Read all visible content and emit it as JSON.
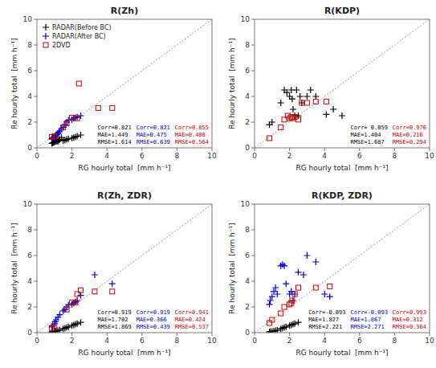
{
  "chart_data": [
    {
      "type": "scatter",
      "title": "R(Zh)",
      "xlabel": "RG hourly total  [mm h⁻¹]",
      "ylabel": "Re hourly total  [mm h⁻¹]",
      "xlim": [
        0,
        10
      ],
      "ylim": [
        0,
        10
      ],
      "xticks": [
        0,
        2,
        4,
        6,
        8,
        10
      ],
      "yticks": [
        0,
        2,
        4,
        6,
        8,
        10
      ],
      "grid": false,
      "legend": "upper left",
      "series": [
        {
          "name": "RADAR(Before BC)",
          "color": "#000000",
          "marker": "plus",
          "x": [
            0.85,
            0.9,
            0.95,
            1.0,
            1.05,
            1.1,
            1.15,
            1.2,
            1.25,
            1.3,
            1.4,
            1.5,
            1.6,
            1.7,
            1.8,
            2.0,
            2.1,
            2.2,
            2.3,
            2.5
          ],
          "values": [
            0.35,
            0.38,
            0.42,
            0.45,
            0.5,
            0.52,
            0.55,
            0.5,
            0.6,
            0.65,
            0.8,
            0.55,
            0.6,
            0.65,
            0.7,
            0.75,
            0.8,
            0.85,
            0.9,
            1.0
          ]
        },
        {
          "name": "RADAR(After BC)",
          "color": "#0000cc",
          "marker": "plus",
          "x": [
            0.85,
            0.9,
            0.95,
            1.0,
            1.05,
            1.1,
            1.15,
            1.2,
            1.25,
            1.3,
            1.4,
            1.5,
            1.6,
            1.7,
            1.8,
            2.0,
            2.1,
            2.2,
            2.3,
            2.5
          ],
          "values": [
            0.7,
            0.75,
            0.82,
            0.88,
            0.95,
            1.0,
            1.05,
            1.1,
            1.2,
            1.3,
            1.5,
            1.6,
            1.8,
            2.0,
            2.15,
            2.2,
            2.3,
            2.35,
            2.4,
            2.5
          ]
        },
        {
          "name": "2DVD",
          "color": "#cc0000",
          "marker": "square-open",
          "x": [
            0.85,
            1.0,
            1.5,
            1.7,
            2.0,
            2.3,
            2.4,
            3.5,
            4.3
          ],
          "values": [
            0.85,
            0.9,
            1.6,
            1.9,
            2.35,
            2.3,
            5.0,
            3.1,
            3.1
          ]
        }
      ],
      "annotations": [
        [
          {
            "text": "Corr=0.821",
            "color": "#000000"
          },
          {
            "text": "Corr=0.821",
            "color": "#0000cc"
          },
          {
            "text": "Corr=0.855",
            "color": "#cc0000"
          }
        ],
        [
          {
            "text": "MAE=1.449",
            "color": "#000000"
          },
          {
            "text": "MAE=0.475",
            "color": "#0000cc"
          },
          {
            "text": "MAE=0.408",
            "color": "#cc0000"
          }
        ],
        [
          {
            "text": "RMSE=1.614",
            "color": "#000000"
          },
          {
            "text": "RMSE=0.639",
            "color": "#0000cc"
          },
          {
            "text": "RMSE=0.564",
            "color": "#cc0000"
          }
        ]
      ]
    },
    {
      "type": "scatter",
      "title": "R(KDP)",
      "xlabel": "RG hourly total  [mm h⁻¹]",
      "ylabel": "Re hourly total  [mm h⁻¹]",
      "xlim": [
        0,
        10
      ],
      "ylim": [
        0,
        10
      ],
      "xticks": [
        0,
        2,
        4,
        6,
        8,
        10
      ],
      "yticks": [
        0,
        2,
        4,
        6,
        8,
        10
      ],
      "grid": false,
      "series": [
        {
          "color": "#000000",
          "marker": "plus",
          "x": [
            0.85,
            1.0,
            1.5,
            1.7,
            1.85,
            2.0,
            2.1,
            2.15,
            2.2,
            2.3,
            2.4,
            2.5,
            2.6,
            2.7,
            3.0,
            3.2,
            3.5,
            4.1,
            4.5,
            5.0
          ],
          "values": [
            1.8,
            2.0,
            3.5,
            4.5,
            4.3,
            4.0,
            4.5,
            3.8,
            3.0,
            2.5,
            4.5,
            2.5,
            4.0,
            3.5,
            4.0,
            4.5,
            4.0,
            2.6,
            3.0,
            2.5
          ]
        },
        {
          "color": "#cc0000",
          "marker": "square-open",
          "x": [
            0.85,
            1.5,
            1.7,
            1.9,
            2.0,
            2.1,
            2.15,
            2.3,
            2.5,
            2.7,
            3.0,
            3.5,
            4.1
          ],
          "values": [
            0.75,
            1.6,
            2.2,
            2.5,
            2.3,
            2.4,
            2.3,
            2.4,
            2.2,
            3.5,
            3.5,
            3.6,
            3.6
          ]
        }
      ],
      "annotations": [
        [
          {
            "text": "Corr= 0.059",
            "color": "#000000"
          },
          {
            "text": "Corr=0.976",
            "color": "#cc0000"
          }
        ],
        [
          {
            "text": "MAE=1.404",
            "color": "#000000"
          },
          {
            "text": "MAE=0.216",
            "color": "#cc0000"
          }
        ],
        [
          {
            "text": "RMSE=1.687",
            "color": "#000000"
          },
          {
            "text": "RMSE=0.294",
            "color": "#cc0000"
          }
        ]
      ]
    },
    {
      "type": "scatter",
      "title": "R(Zh, ZDR)",
      "xlabel": "RG hourly total  [mm h⁻¹]",
      "ylabel": "Re hourly total  [mm h⁻¹]",
      "xlim": [
        0,
        10
      ],
      "ylim": [
        0,
        10
      ],
      "xticks": [
        0,
        2,
        4,
        6,
        8,
        10
      ],
      "yticks": [
        0,
        2,
        4,
        6,
        8,
        10
      ],
      "grid": false,
      "series": [
        {
          "color": "#000000",
          "marker": "plus",
          "x": [
            0.85,
            0.9,
            1.0,
            1.05,
            1.1,
            1.2,
            1.3,
            1.5,
            1.6,
            1.7,
            1.8,
            2.0,
            2.1,
            2.2,
            2.3,
            2.5
          ],
          "values": [
            0.05,
            0.08,
            0.1,
            0.12,
            0.15,
            0.15,
            0.2,
            0.3,
            0.35,
            0.4,
            0.45,
            0.55,
            0.6,
            0.65,
            0.7,
            0.8
          ]
        },
        {
          "color": "#0000cc",
          "marker": "plus",
          "x": [
            0.85,
            0.9,
            1.0,
            1.05,
            1.1,
            1.2,
            1.3,
            1.5,
            1.6,
            1.7,
            1.8,
            2.0,
            2.1,
            2.2,
            2.3,
            2.5,
            3.3,
            4.3
          ],
          "values": [
            0.45,
            0.55,
            0.7,
            0.85,
            1.0,
            1.2,
            1.4,
            1.7,
            1.8,
            2.0,
            2.15,
            2.2,
            2.3,
            2.4,
            2.5,
            2.9,
            4.5,
            3.8
          ]
        },
        {
          "color": "#cc0000",
          "marker": "square-open",
          "x": [
            0.85,
            1.0,
            1.7,
            2.0,
            2.2,
            2.3,
            2.5,
            3.3,
            4.3
          ],
          "values": [
            0.35,
            0.5,
            1.8,
            2.35,
            2.35,
            3.0,
            3.3,
            3.2,
            3.2
          ]
        }
      ],
      "annotations": [
        [
          {
            "text": "Corr=0.919",
            "color": "#000000"
          },
          {
            "text": "Corr=0.919",
            "color": "#0000cc"
          },
          {
            "text": "Corr=0.941",
            "color": "#cc0000"
          }
        ],
        [
          {
            "text": "MAE=1.702",
            "color": "#000000"
          },
          {
            "text": "MAE=0.366",
            "color": "#0000cc"
          },
          {
            "text": "MAE=0.424",
            "color": "#cc0000"
          }
        ],
        [
          {
            "text": "RMSE=1.869",
            "color": "#000000"
          },
          {
            "text": "RMSE=0.439",
            "color": "#0000cc"
          },
          {
            "text": "RMSE=0.537",
            "color": "#cc0000"
          }
        ]
      ]
    },
    {
      "type": "scatter",
      "title": "R(KDP, ZDR)",
      "xlabel": "RG hourly total  [mm h⁻¹]",
      "ylabel": "Re hourly total  [mm h⁻¹]",
      "xlim": [
        0,
        10
      ],
      "ylim": [
        0,
        10
      ],
      "xticks": [
        0,
        2,
        4,
        6,
        8,
        10
      ],
      "yticks": [
        0,
        2,
        4,
        6,
        8,
        10
      ],
      "grid": false,
      "series": [
        {
          "color": "#000000",
          "marker": "plus",
          "x": [
            0.85,
            0.9,
            1.0,
            1.1,
            1.2,
            1.3,
            1.5,
            1.6,
            1.7,
            1.8,
            2.0,
            2.1,
            2.2,
            2.3,
            2.5
          ],
          "values": [
            0.05,
            0.08,
            0.1,
            0.12,
            0.15,
            0.18,
            0.3,
            0.35,
            0.4,
            0.45,
            0.55,
            0.6,
            0.65,
            0.7,
            0.8
          ]
        },
        {
          "color": "#0000cc",
          "marker": "plus",
          "x": [
            0.85,
            0.9,
            1.0,
            1.1,
            1.2,
            1.3,
            1.5,
            1.6,
            1.7,
            1.8,
            2.0,
            2.1,
            2.2,
            2.3,
            2.5,
            2.8,
            3.0,
            3.5,
            4.0,
            4.3
          ],
          "values": [
            2.2,
            2.5,
            2.8,
            3.2,
            3.5,
            3.0,
            5.2,
            5.3,
            5.2,
            3.8,
            3.0,
            3.2,
            2.5,
            3.0,
            4.7,
            4.5,
            6.0,
            5.5,
            3.0,
            2.8
          ]
        },
        {
          "color": "#cc0000",
          "marker": "square-open",
          "x": [
            0.85,
            1.0,
            1.5,
            1.7,
            2.0,
            2.1,
            2.15,
            2.3,
            2.5,
            3.5,
            4.3
          ],
          "values": [
            0.75,
            1.0,
            1.5,
            2.0,
            2.2,
            2.3,
            2.5,
            3.0,
            3.5,
            3.5,
            3.6
          ]
        }
      ],
      "annotations": [
        [
          {
            "text": "Corr=-0.093",
            "color": "#000000"
          },
          {
            "text": "Corr=-0.093",
            "color": "#0000cc"
          },
          {
            "text": "Corr=0.993",
            "color": "#cc0000"
          }
        ],
        [
          {
            "text": "MAE=1.827",
            "color": "#000000"
          },
          {
            "text": "MAE=1.867",
            "color": "#0000cc"
          },
          {
            "text": "MAE=0.312",
            "color": "#cc0000"
          }
        ],
        [
          {
            "text": "RMSE=2.221",
            "color": "#000000"
          },
          {
            "text": "RMSE=2.271",
            "color": "#0000cc"
          },
          {
            "text": "RMSE=0.364",
            "color": "#cc0000"
          }
        ]
      ]
    }
  ]
}
